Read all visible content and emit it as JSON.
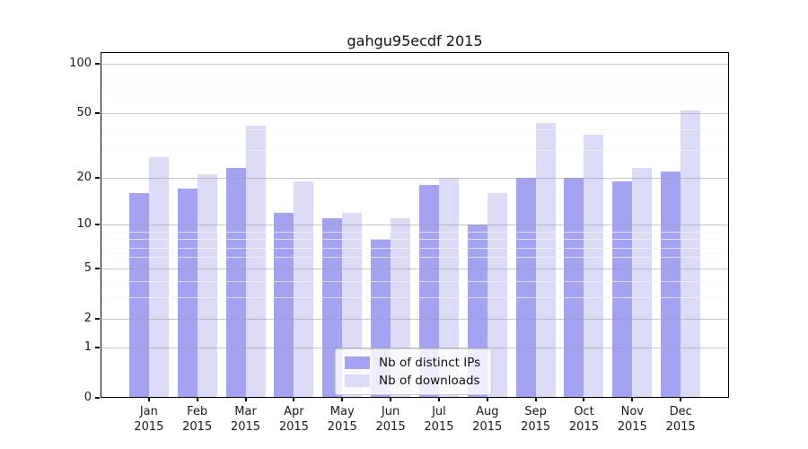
{
  "chart_data": {
    "type": "bar",
    "title": "gahgu95ecdf 2015",
    "categories": [
      "Jan",
      "Feb",
      "Mar",
      "Apr",
      "May",
      "Jun",
      "Jul",
      "Aug",
      "Sep",
      "Oct",
      "Nov",
      "Dec"
    ],
    "category_year": "2015",
    "series": [
      {
        "name": "Nb of distinct IPs",
        "color": "#a3a3f2",
        "values": [
          16,
          17,
          23,
          12,
          11,
          8,
          18,
          10,
          20,
          20,
          19,
          22
        ]
      },
      {
        "name": "Nb of downloads",
        "color": "#dbdbf8",
        "values": [
          27,
          21,
          42,
          19,
          12,
          11,
          20,
          16,
          44,
          37,
          23,
          52
        ]
      }
    ],
    "yscale": "log1p",
    "ylim": [
      0,
      118
    ],
    "yticks_major": [
      100,
      50,
      20,
      10,
      5,
      2,
      1,
      0
    ],
    "yticks_minor": [
      90,
      80,
      70,
      60,
      40,
      30,
      9,
      8,
      7,
      6,
      4,
      3
    ],
    "grid": true,
    "legend_position": "lower center"
  },
  "colors": {
    "background": "#ffffff",
    "spine": "#000000",
    "grid_major": "rgba(160,160,160,0.6)",
    "grid_minor": "rgba(246,246,246,0.7)",
    "text": "#1a1a1a"
  }
}
